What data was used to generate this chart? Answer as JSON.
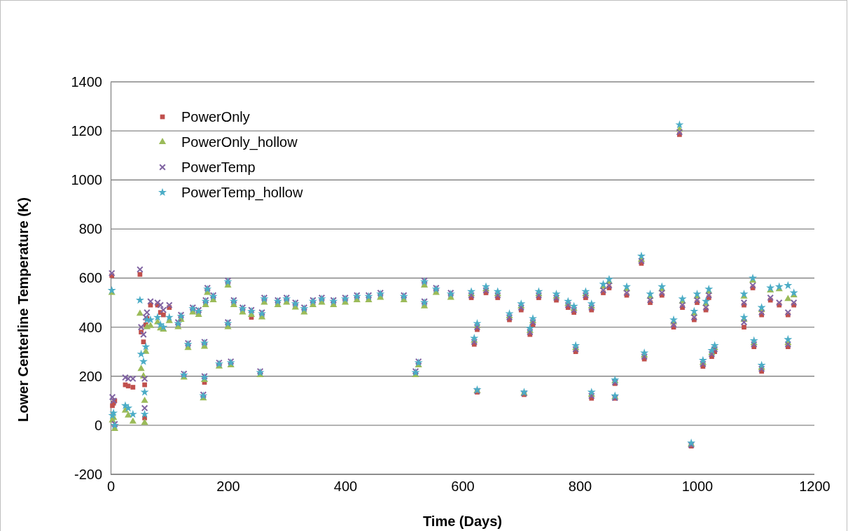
{
  "chart_data": {
    "type": "scatter",
    "xlabel": "Time (Days)",
    "ylabel": "Lower Centerline Temperature (K)",
    "xlim": [
      0,
      1200
    ],
    "xticks": [
      0,
      200,
      400,
      600,
      800,
      1000,
      1200
    ],
    "ylim": [
      -200,
      1400
    ],
    "yticks": [
      -200,
      0,
      200,
      400,
      600,
      800,
      1000,
      1200,
      1400
    ],
    "grid": "y",
    "legend": "top left",
    "x": [
      2,
      3,
      5,
      7,
      25,
      30,
      38,
      50,
      52,
      56,
      58,
      58,
      60,
      62,
      68,
      80,
      85,
      90,
      100,
      115,
      120,
      125,
      132,
      140,
      150,
      158,
      160,
      160,
      162,
      165,
      175,
      185,
      200,
      200,
      205,
      210,
      225,
      240,
      255,
      258,
      262,
      285,
      300,
      315,
      330,
      345,
      360,
      380,
      400,
      420,
      440,
      460,
      500,
      520,
      525,
      535,
      535,
      555,
      580,
      615,
      620,
      625,
      625,
      640,
      660,
      680,
      700,
      705,
      715,
      720,
      730,
      760,
      780,
      790,
      793,
      810,
      820,
      820,
      840,
      850,
      860,
      860,
      880,
      905,
      910,
      920,
      940,
      960,
      970,
      975,
      990,
      995,
      1000,
      1010,
      1015,
      1020,
      1025,
      1030,
      1080,
      1080,
      1095,
      1097,
      1110,
      1110,
      1125,
      1140,
      1155,
      1155,
      1165
    ],
    "series": [
      {
        "name": "PowerOnly",
        "color": "#c0504d",
        "marker": "square",
        "values": [
          610,
          80,
          90,
          100,
          165,
          160,
          155,
          615,
          380,
          340,
          165,
          30,
          410,
          435,
          490,
          490,
          460,
          450,
          480,
          410,
          440,
          200,
          325,
          470,
          460,
          115,
          175,
          330,
          500,
          550,
          520,
          245,
          580,
          410,
          250,
          500,
          470,
          440,
          210,
          450,
          510,
          500,
          510,
          490,
          470,
          500,
          510,
          500,
          510,
          520,
          520,
          530,
          520,
          210,
          250,
          580,
          495,
          550,
          530,
          520,
          330,
          390,
          135,
          540,
          520,
          430,
          470,
          125,
          370,
          410,
          520,
          510,
          480,
          460,
          300,
          520,
          110,
          470,
          540,
          560,
          170,
          110,
          530,
          660,
          270,
          500,
          530,
          400,
          1185,
          480,
          -85,
          430,
          500,
          240,
          470,
          520,
          280,
          300,
          400,
          490,
          560,
          320,
          450,
          220,
          510,
          490,
          320,
          450,
          490
        ]
      },
      {
        "name": "PowerOnly_hollow",
        "color": "#9bbb59",
        "marker": "triangle",
        "values": [
          540,
          20,
          30,
          -15,
          60,
          40,
          15,
          455,
          230,
          200,
          100,
          10,
          300,
          400,
          405,
          420,
          395,
          390,
          425,
          400,
          430,
          195,
          315,
          460,
          450,
          110,
          185,
          320,
          490,
          540,
          510,
          240,
          570,
          400,
          245,
          490,
          460,
          450,
          205,
          440,
          500,
          490,
          500,
          480,
          460,
          490,
          500,
          490,
          500,
          510,
          510,
          520,
          510,
          205,
          245,
          570,
          485,
          540,
          520,
          535,
          345,
          405,
          140,
          555,
          535,
          445,
          485,
          130,
          385,
          425,
          535,
          525,
          495,
          475,
          315,
          535,
          125,
          485,
          565,
          585,
          180,
          115,
          555,
          675,
          285,
          525,
          555,
          420,
          1205,
          505,
          -78,
          455,
          525,
          255,
          495,
          545,
          295,
          315,
          430,
          525,
          590,
          335,
          470,
          235,
          550,
          555,
          335,
          515,
          530
        ]
      },
      {
        "name": "PowerTemp",
        "color": "#8064a2",
        "marker": "cross",
        "values": [
          620,
          115,
          100,
          5,
          195,
          190,
          190,
          635,
          400,
          370,
          190,
          70,
          440,
          460,
          505,
          500,
          490,
          470,
          490,
          420,
          450,
          210,
          335,
          480,
          470,
          125,
          200,
          340,
          510,
          560,
          530,
          255,
          590,
          420,
          260,
          510,
          480,
          470,
          220,
          460,
          520,
          510,
          520,
          500,
          480,
          510,
          520,
          510,
          520,
          530,
          530,
          540,
          530,
          220,
          260,
          590,
          505,
          560,
          540,
          530,
          340,
          400,
          140,
          550,
          530,
          440,
          480,
          130,
          380,
          420,
          530,
          520,
          490,
          470,
          310,
          530,
          120,
          480,
          550,
          570,
          175,
          112,
          540,
          670,
          280,
          510,
          540,
          410,
          1195,
          490,
          -80,
          440,
          510,
          250,
          480,
          530,
          290,
          310,
          420,
          500,
          570,
          330,
          460,
          230,
          520,
          500,
          330,
          460,
          500
        ]
      },
      {
        "name": "PowerTemp_hollow",
        "color": "#4bacc6",
        "marker": "star",
        "values": [
          550,
          40,
          50,
          0,
          80,
          70,
          45,
          510,
          290,
          260,
          135,
          45,
          320,
          430,
          430,
          440,
          410,
          400,
          440,
          415,
          445,
          205,
          330,
          475,
          465,
          120,
          195,
          335,
          505,
          555,
          525,
          250,
          585,
          415,
          255,
          505,
          475,
          465,
          215,
          455,
          515,
          505,
          515,
          495,
          475,
          505,
          515,
          505,
          515,
          525,
          525,
          535,
          525,
          215,
          255,
          585,
          500,
          555,
          535,
          545,
          355,
          415,
          145,
          565,
          545,
          455,
          495,
          135,
          395,
          435,
          545,
          535,
          505,
          485,
          325,
          545,
          135,
          495,
          575,
          595,
          185,
          120,
          565,
          690,
          295,
          535,
          565,
          430,
          1225,
          515,
          -72,
          465,
          535,
          265,
          505,
          555,
          305,
          325,
          440,
          535,
          600,
          345,
          480,
          245,
          560,
          565,
          350,
          570,
          540
        ]
      }
    ]
  }
}
